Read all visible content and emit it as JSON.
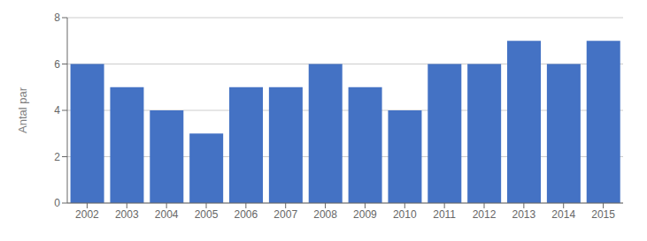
{
  "chart_data": {
    "type": "bar",
    "categories": [
      "2002",
      "2003",
      "2004",
      "2005",
      "2006",
      "2007",
      "2008",
      "2009",
      "2010",
      "2011",
      "2012",
      "2013",
      "2014",
      "2015"
    ],
    "values": [
      6,
      5,
      4,
      3,
      5,
      5,
      6,
      5,
      4,
      6,
      6,
      7,
      6,
      7
    ],
    "color": "#4472C4",
    "ylabel": "Antal par",
    "ylim": [
      0,
      8
    ],
    "yticks": [
      0,
      2,
      4,
      6,
      8
    ],
    "grid": true
  }
}
